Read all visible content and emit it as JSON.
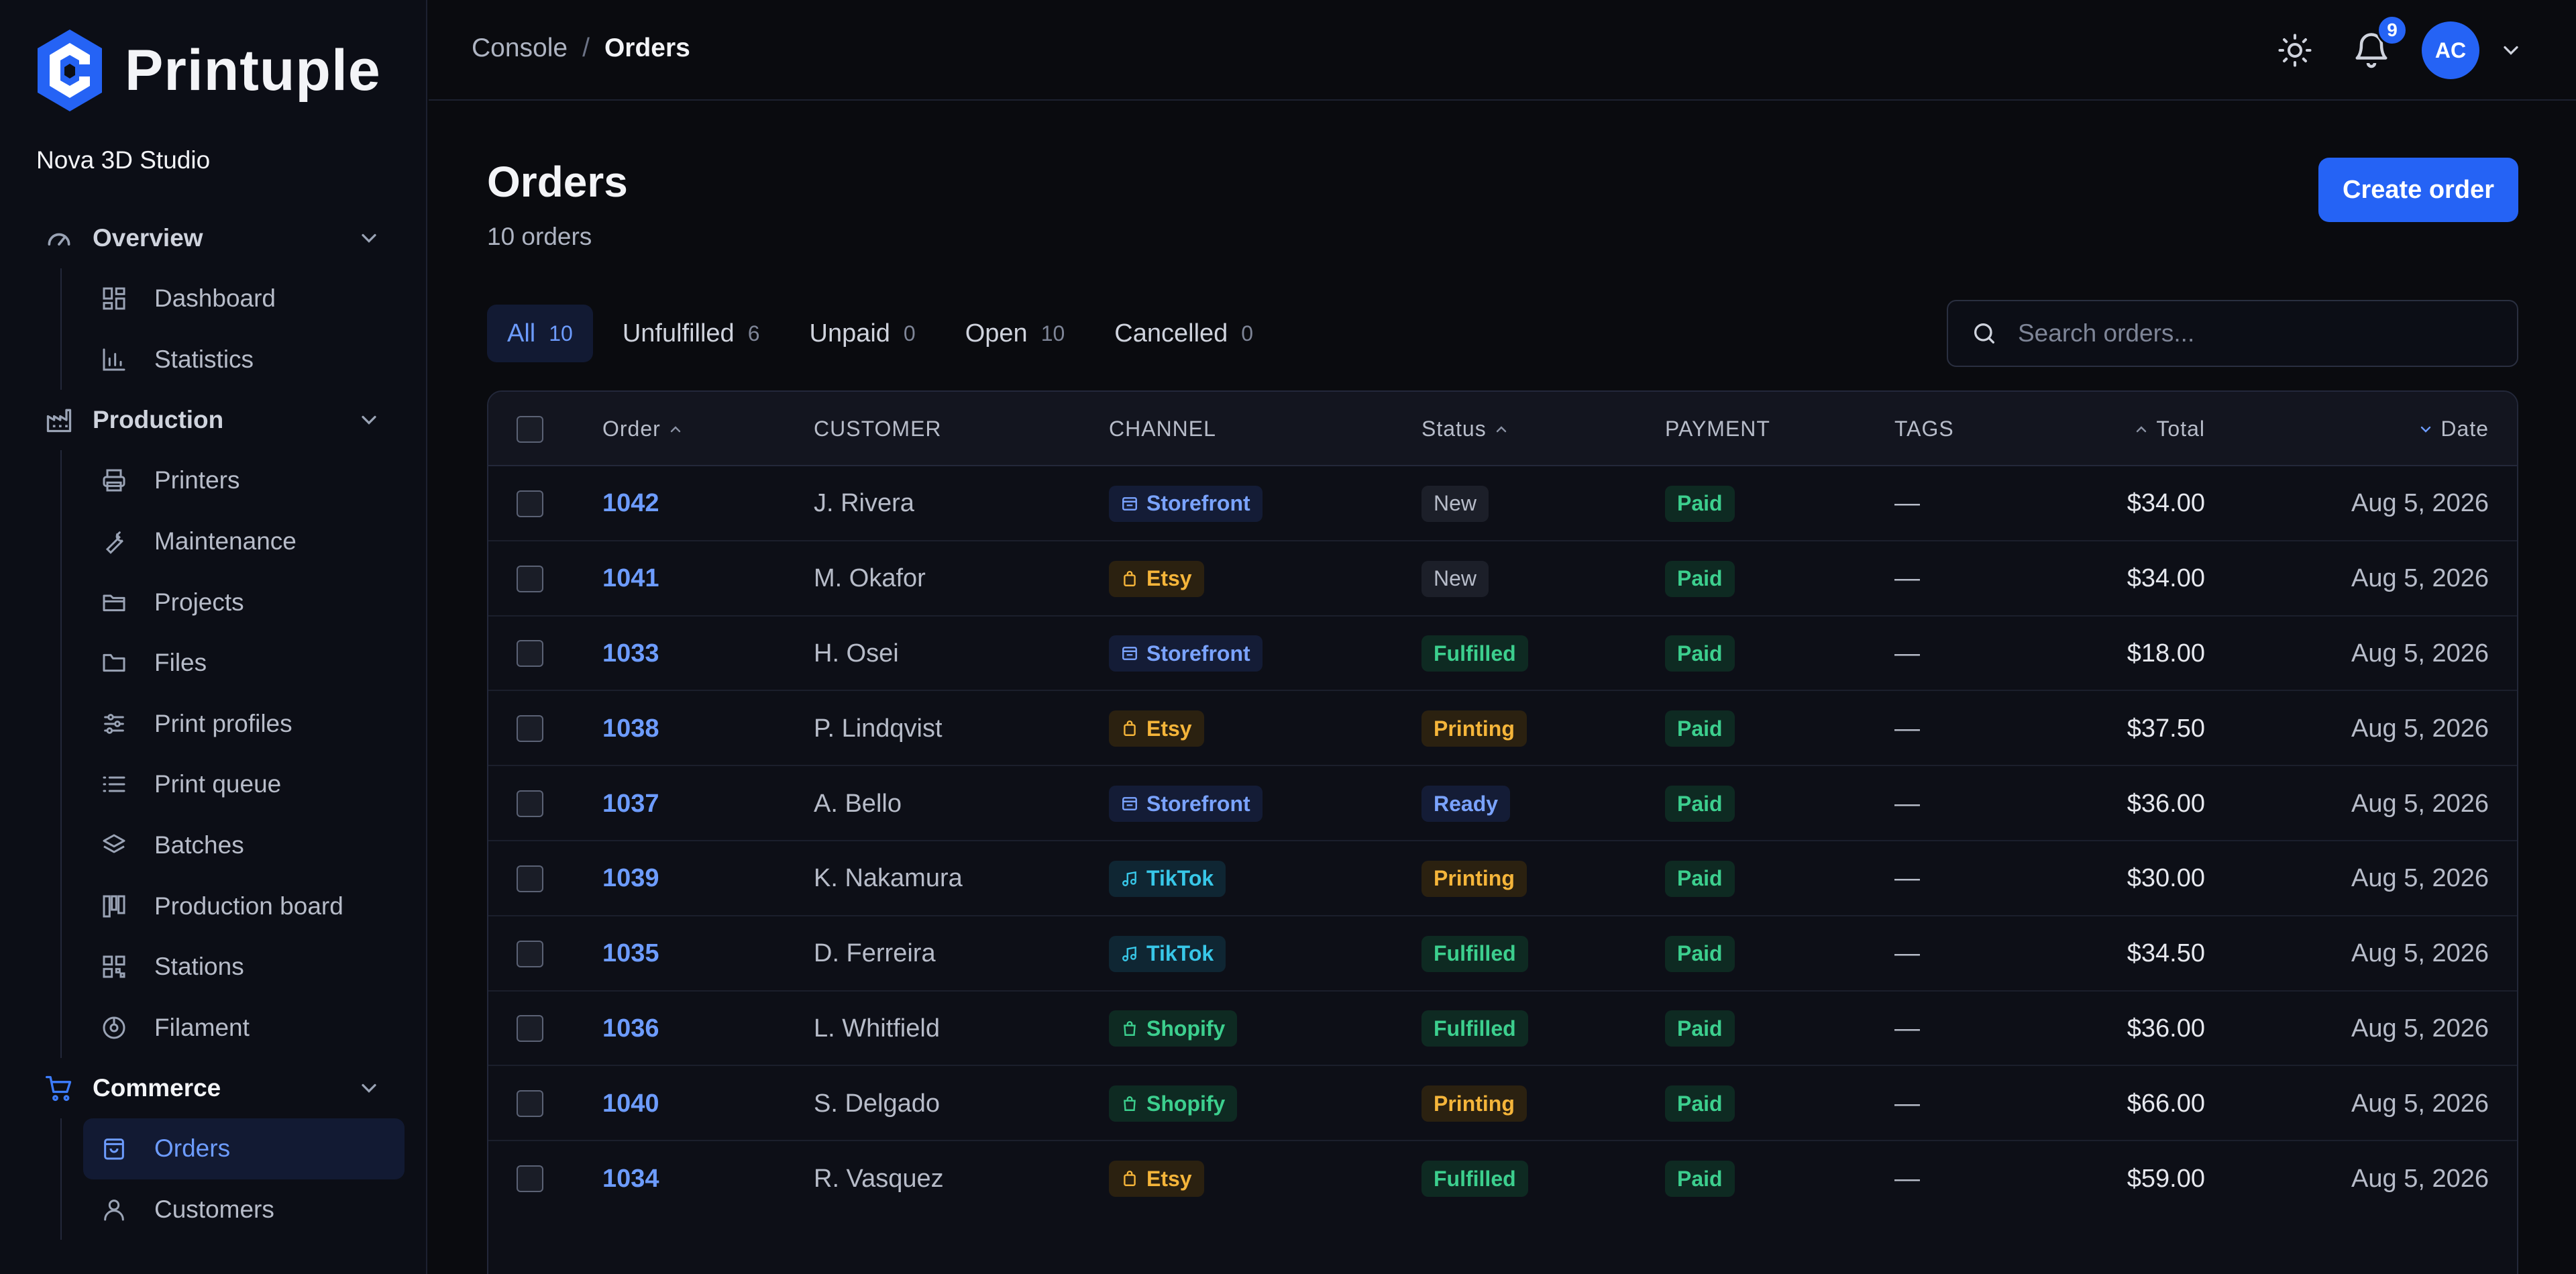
{
  "brand": {
    "name": "Printuple",
    "org": "Nova 3D Studio",
    "accent": "#2563f5"
  },
  "sidebar": {
    "groups": [
      {
        "label": "Overview",
        "icon": "gauge-icon",
        "items": [
          {
            "label": "Dashboard",
            "icon": "grid-icon"
          },
          {
            "label": "Statistics",
            "icon": "bar-chart-icon"
          }
        ]
      },
      {
        "label": "Production",
        "icon": "factory-icon",
        "items": [
          {
            "label": "Printers",
            "icon": "printer-icon"
          },
          {
            "label": "Maintenance",
            "icon": "wrench-icon"
          },
          {
            "label": "Projects",
            "icon": "folder-open-icon"
          },
          {
            "label": "Files",
            "icon": "folder-icon"
          },
          {
            "label": "Print profiles",
            "icon": "sliders-icon"
          },
          {
            "label": "Print queue",
            "icon": "list-icon"
          },
          {
            "label": "Batches",
            "icon": "layers-icon"
          },
          {
            "label": "Production board",
            "icon": "kanban-icon"
          },
          {
            "label": "Stations",
            "icon": "qr-icon"
          },
          {
            "label": "Filament",
            "icon": "spool-icon"
          }
        ]
      },
      {
        "label": "Commerce",
        "icon": "cart-icon",
        "items": [
          {
            "label": "Orders",
            "icon": "bag-icon",
            "active": true
          },
          {
            "label": "Customers",
            "icon": "user-icon"
          }
        ]
      }
    ]
  },
  "topbar": {
    "breadcrumb": [
      "Console",
      "/",
      "Orders"
    ],
    "notifications_count": "9",
    "avatar_initials": "AC"
  },
  "page": {
    "title": "Orders",
    "subtitle": "10 orders",
    "create_label": "Create order"
  },
  "tabs": [
    {
      "label": "All",
      "count": "10",
      "active": true
    },
    {
      "label": "Unfulfilled",
      "count": "6"
    },
    {
      "label": "Unpaid",
      "count": "0"
    },
    {
      "label": "Open",
      "count": "10"
    },
    {
      "label": "Cancelled",
      "count": "0"
    }
  ],
  "search": {
    "placeholder": "Search orders...",
    "value": ""
  },
  "table": {
    "columns": {
      "order": "Order",
      "customer": "CUSTOMER",
      "channel": "CHANNEL",
      "status": "Status",
      "payment": "PAYMENT",
      "tags": "TAGS",
      "total": "Total",
      "date": "Date"
    },
    "rows": [
      {
        "order": "1042",
        "customer": "J. Rivera",
        "channel": "Storefront",
        "status": "New",
        "payment": "Paid",
        "tags": "—",
        "total": "$34.00",
        "date": "Aug 5, 2026"
      },
      {
        "order": "1041",
        "customer": "M. Okafor",
        "channel": "Etsy",
        "status": "New",
        "payment": "Paid",
        "tags": "—",
        "total": "$34.00",
        "date": "Aug 5, 2026"
      },
      {
        "order": "1033",
        "customer": "H. Osei",
        "channel": "Storefront",
        "status": "Fulfilled",
        "payment": "Paid",
        "tags": "—",
        "total": "$18.00",
        "date": "Aug 5, 2026"
      },
      {
        "order": "1038",
        "customer": "P. Lindqvist",
        "channel": "Etsy",
        "status": "Printing",
        "payment": "Paid",
        "tags": "—",
        "total": "$37.50",
        "date": "Aug 5, 2026"
      },
      {
        "order": "1037",
        "customer": "A. Bello",
        "channel": "Storefront",
        "status": "Ready",
        "payment": "Paid",
        "tags": "—",
        "total": "$36.00",
        "date": "Aug 5, 2026"
      },
      {
        "order": "1039",
        "customer": "K. Nakamura",
        "channel": "TikTok",
        "status": "Printing",
        "payment": "Paid",
        "tags": "—",
        "total": "$30.00",
        "date": "Aug 5, 2026"
      },
      {
        "order": "1035",
        "customer": "D. Ferreira",
        "channel": "TikTok",
        "status": "Fulfilled",
        "payment": "Paid",
        "tags": "—",
        "total": "$34.50",
        "date": "Aug 5, 2026"
      },
      {
        "order": "1036",
        "customer": "L. Whitfield",
        "channel": "Shopify",
        "status": "Fulfilled",
        "payment": "Paid",
        "tags": "—",
        "total": "$36.00",
        "date": "Aug 5, 2026"
      },
      {
        "order": "1040",
        "customer": "S. Delgado",
        "channel": "Shopify",
        "status": "Printing",
        "payment": "Paid",
        "tags": "—",
        "total": "$66.00",
        "date": "Aug 5, 2026"
      },
      {
        "order": "1034",
        "customer": "R. Vasquez",
        "channel": "Etsy",
        "status": "Fulfilled",
        "payment": "Paid",
        "tags": "—",
        "total": "$59.00",
        "date": "Aug 5, 2026"
      }
    ]
  }
}
